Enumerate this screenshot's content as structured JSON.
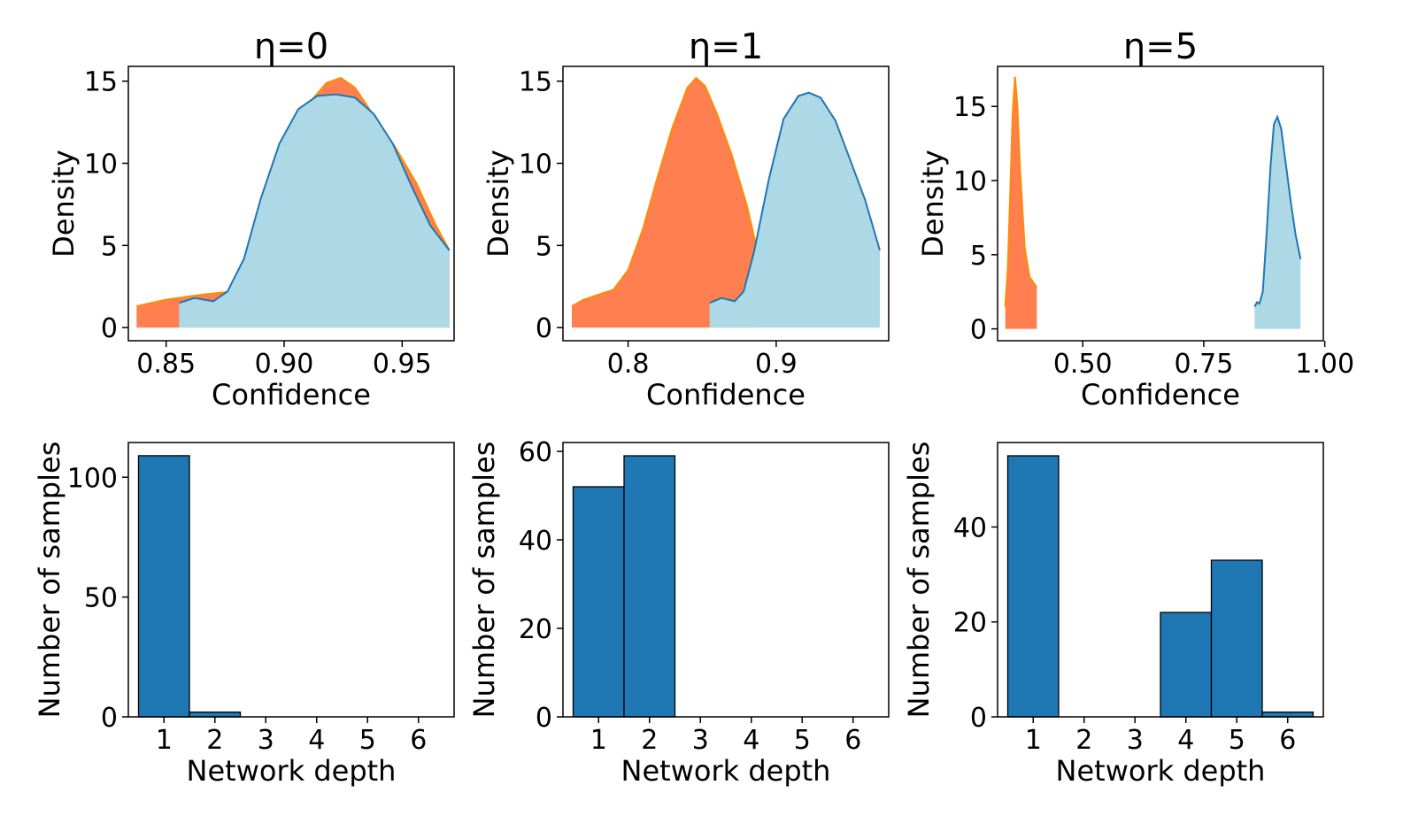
{
  "chart_data": [
    {
      "type": "area",
      "title": "η=0",
      "xlabel": "Confidence",
      "ylabel": "Density",
      "xlim": [
        0.834,
        0.972
      ],
      "ylim": [
        -0.8,
        15.9
      ],
      "xticks": [
        0.85,
        0.9,
        0.95
      ],
      "xtick_labels": [
        "0.85",
        "0.90",
        "0.95"
      ],
      "yticks": [
        0,
        5,
        10,
        15
      ],
      "ytick_labels": [
        "0",
        "5",
        "10",
        "15"
      ],
      "series": [
        {
          "name": "filled-orange",
          "style": "fill",
          "color": "#ff7f50",
          "points": [
            [
              0.8375,
              1.3
            ],
            [
              0.85,
              1.7
            ],
            [
              0.865,
              2.0
            ],
            [
              0.878,
              2.2
            ],
            [
              0.888,
              4.5
            ],
            [
              0.896,
              8.2
            ],
            [
              0.904,
              11.5
            ],
            [
              0.912,
              13.9
            ],
            [
              0.918,
              14.9
            ],
            [
              0.924,
              15.2
            ],
            [
              0.93,
              14.6
            ],
            [
              0.938,
              12.9
            ],
            [
              0.947,
              11.0
            ],
            [
              0.956,
              8.8
            ],
            [
              0.964,
              6.3
            ],
            [
              0.97,
              4.7
            ]
          ]
        },
        {
          "name": "filled-lightblue",
          "style": "fill-line",
          "color": "#add8e6",
          "line_color": "#1f77b4",
          "points": [
            [
              0.8555,
              1.5
            ],
            [
              0.862,
              1.8
            ],
            [
              0.87,
              1.6
            ],
            [
              0.876,
              2.2
            ],
            [
              0.883,
              4.2
            ],
            [
              0.89,
              7.8
            ],
            [
              0.898,
              11.2
            ],
            [
              0.906,
              13.3
            ],
            [
              0.914,
              14.1
            ],
            [
              0.922,
              14.2
            ],
            [
              0.93,
              14.0
            ],
            [
              0.938,
              13.0
            ],
            [
              0.946,
              11.2
            ],
            [
              0.954,
              8.6
            ],
            [
              0.962,
              6.2
            ],
            [
              0.97,
              4.7
            ]
          ]
        }
      ]
    },
    {
      "type": "area",
      "title": "η=1",
      "xlabel": "Confidence",
      "ylabel": "Density",
      "xlim": [
        0.756,
        0.976
      ],
      "ylim": [
        -0.8,
        15.9
      ],
      "xticks": [
        0.8,
        0.9
      ],
      "xtick_labels": [
        "0.8",
        "0.9"
      ],
      "yticks": [
        0,
        5,
        10,
        15
      ],
      "ytick_labels": [
        "0",
        "5",
        "10",
        "15"
      ],
      "series": [
        {
          "name": "filled-orange",
          "style": "fill",
          "color": "#ff7f50",
          "points": [
            [
              0.762,
              1.3
            ],
            [
              0.77,
              1.7
            ],
            [
              0.78,
              2.0
            ],
            [
              0.79,
              2.3
            ],
            [
              0.8,
              3.5
            ],
            [
              0.81,
              6.0
            ],
            [
              0.82,
              9.2
            ],
            [
              0.83,
              12.2
            ],
            [
              0.84,
              14.6
            ],
            [
              0.846,
              15.2
            ],
            [
              0.852,
              14.7
            ],
            [
              0.86,
              13.0
            ],
            [
              0.87,
              10.5
            ],
            [
              0.88,
              7.5
            ],
            [
              0.887,
              4.8
            ]
          ]
        },
        {
          "name": "filled-lightblue",
          "style": "fill-line",
          "color": "#add8e6",
          "line_color": "#1f77b4",
          "points": [
            [
              0.855,
              1.5
            ],
            [
              0.863,
              1.8
            ],
            [
              0.872,
              1.6
            ],
            [
              0.878,
              2.2
            ],
            [
              0.885,
              4.6
            ],
            [
              0.895,
              9.0
            ],
            [
              0.905,
              12.7
            ],
            [
              0.915,
              14.1
            ],
            [
              0.922,
              14.3
            ],
            [
              0.93,
              14.0
            ],
            [
              0.94,
              12.6
            ],
            [
              0.95,
              10.2
            ],
            [
              0.96,
              7.8
            ],
            [
              0.97,
              4.7
            ]
          ]
        }
      ]
    },
    {
      "type": "area",
      "title": "η=5",
      "xlabel": "Confidence",
      "ylabel": "Density",
      "xlim": [
        0.324,
        0.997
      ],
      "ylim": [
        -0.8,
        17.7
      ],
      "xticks": [
        0.5,
        0.75,
        1.0
      ],
      "xtick_labels": [
        "0.50",
        "0.75",
        "1.00"
      ],
      "yticks": [
        0,
        5,
        10,
        15
      ],
      "ytick_labels": [
        "0",
        "5",
        "10",
        "15"
      ],
      "series": [
        {
          "name": "filled-orange",
          "style": "fill",
          "color": "#ff7f50",
          "points": [
            [
              0.34,
              1.5
            ],
            [
              0.345,
              4.0
            ],
            [
              0.35,
              9.0
            ],
            [
              0.355,
              14.5
            ],
            [
              0.36,
              17.0
            ],
            [
              0.365,
              15.0
            ],
            [
              0.37,
              11.0
            ],
            [
              0.38,
              5.5
            ],
            [
              0.39,
              3.5
            ],
            [
              0.405,
              2.8
            ]
          ]
        },
        {
          "name": "filled-lightblue",
          "style": "fill-line",
          "color": "#add8e6",
          "line_color": "#1f77b4",
          "points": [
            [
              0.855,
              1.5
            ],
            [
              0.86,
              1.8
            ],
            [
              0.865,
              1.7
            ],
            [
              0.872,
              2.5
            ],
            [
              0.88,
              6.5
            ],
            [
              0.888,
              11.0
            ],
            [
              0.895,
              13.8
            ],
            [
              0.902,
              14.3
            ],
            [
              0.91,
              13.5
            ],
            [
              0.92,
              11.0
            ],
            [
              0.93,
              8.5
            ],
            [
              0.94,
              6.3
            ],
            [
              0.95,
              4.7
            ]
          ]
        }
      ]
    },
    {
      "type": "bar",
      "xlabel": "Network depth",
      "ylabel": "Number of samples",
      "categories": [
        "1",
        "2",
        "3",
        "4",
        "5",
        "6"
      ],
      "values": [
        109,
        2,
        0,
        0,
        0,
        0
      ],
      "color": "#1f77b4",
      "ylim": [
        0,
        114.5
      ],
      "yticks": [
        0,
        50,
        100
      ],
      "ytick_labels": [
        "0",
        "50",
        "100"
      ]
    },
    {
      "type": "bar",
      "xlabel": "Network depth",
      "ylabel": "Number of samples",
      "categories": [
        "1",
        "2",
        "3",
        "4",
        "5",
        "6"
      ],
      "values": [
        52,
        59,
        0,
        0,
        0,
        0
      ],
      "color": "#1f77b4",
      "ylim": [
        0,
        62
      ],
      "yticks": [
        0,
        20,
        40,
        60
      ],
      "ytick_labels": [
        "0",
        "20",
        "40",
        "60"
      ]
    },
    {
      "type": "bar",
      "xlabel": "Network depth",
      "ylabel": "Number of samples",
      "categories": [
        "1",
        "2",
        "3",
        "4",
        "5",
        "6"
      ],
      "values": [
        55,
        0,
        0,
        22,
        33,
        1
      ],
      "color": "#1f77b4",
      "ylim": [
        0,
        57.8
      ],
      "yticks": [
        0,
        20,
        40
      ],
      "ytick_labels": [
        "0",
        "20",
        "40"
      ]
    }
  ]
}
